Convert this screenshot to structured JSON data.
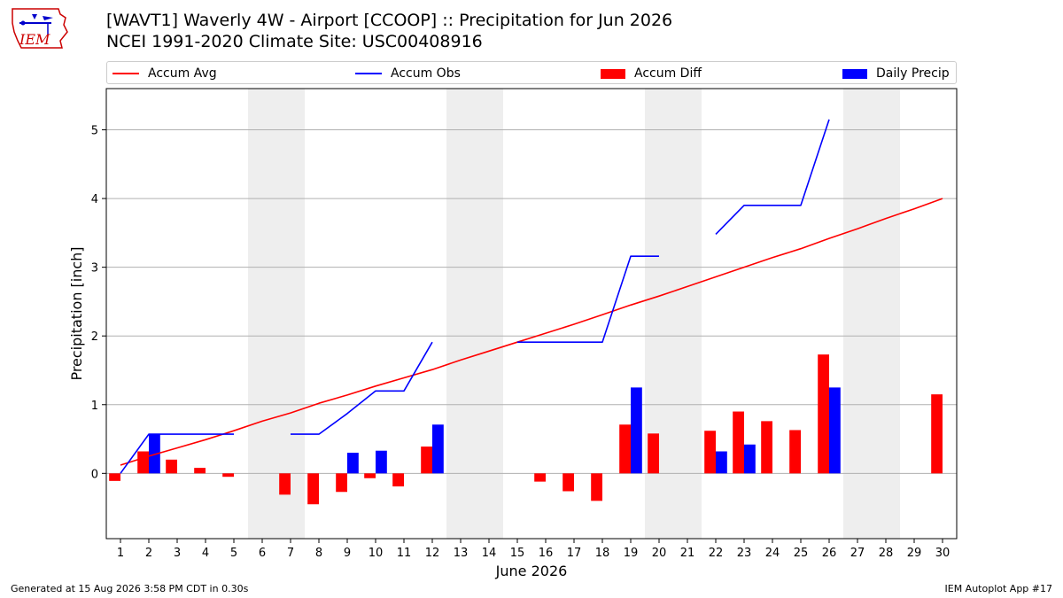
{
  "header": {
    "title_line1": "[WAVT1] Waverly 4W - Airport [CCOOP] :: Precipitation for Jun 2026",
    "title_line2": "NCEI 1991-2020 Climate Site: USC00408916",
    "logo_text": "IEM"
  },
  "footer": {
    "left": "Generated at 15 Aug 2026 3:58 PM CDT in 0.30s",
    "right": "IEM Autoplot App #17"
  },
  "colors": {
    "avg": "#ff0000",
    "obs": "#0000ff",
    "diff": "#ff0000",
    "daily": "#0000ff",
    "weekend": "#eeeeee",
    "grid": "#b0b0b0"
  },
  "chart_data": {
    "type": "bar",
    "xlabel": "June 2026",
    "ylabel": "Precipitation [inch]",
    "xlim": [
      0.5,
      30.5
    ],
    "ylim": [
      -0.95,
      5.6
    ],
    "yticks": [
      0,
      1,
      2,
      3,
      4,
      5
    ],
    "grid": "horizontal",
    "legend_position": "top",
    "weekend_days": [
      6,
      7,
      13,
      14,
      20,
      21,
      27,
      28
    ],
    "days": [
      1,
      2,
      3,
      4,
      5,
      6,
      7,
      8,
      9,
      10,
      11,
      12,
      13,
      14,
      15,
      16,
      17,
      18,
      19,
      20,
      21,
      22,
      23,
      24,
      25,
      26,
      27,
      28,
      29,
      30
    ],
    "series": [
      {
        "name": "Accum Avg",
        "kind": "line",
        "values": [
          0.12,
          0.25,
          0.37,
          0.49,
          0.62,
          0.76,
          0.88,
          1.02,
          1.14,
          1.27,
          1.39,
          1.51,
          1.65,
          1.78,
          1.91,
          2.04,
          2.17,
          2.31,
          2.45,
          2.58,
          2.72,
          2.86,
          3.0,
          3.14,
          3.27,
          3.42,
          3.56,
          3.71,
          3.85,
          4.0
        ]
      },
      {
        "name": "Accum Obs",
        "kind": "line",
        "values": [
          0.0,
          0.57,
          0.57,
          0.57,
          0.57,
          null,
          0.57,
          0.57,
          0.87,
          1.2,
          1.2,
          1.91,
          null,
          null,
          1.91,
          1.91,
          1.91,
          1.91,
          3.16,
          3.16,
          null,
          3.48,
          3.9,
          3.9,
          3.9,
          5.15,
          null,
          null,
          null,
          null
        ]
      },
      {
        "name": "Accum Diff",
        "kind": "bar",
        "values": [
          -0.11,
          0.32,
          0.2,
          0.08,
          -0.05,
          null,
          -0.31,
          -0.45,
          -0.27,
          -0.07,
          -0.19,
          0.39,
          null,
          null,
          0.0,
          -0.12,
          -0.26,
          -0.4,
          0.71,
          0.58,
          null,
          0.62,
          0.9,
          0.76,
          0.63,
          1.73,
          null,
          null,
          null,
          1.15
        ]
      },
      {
        "name": "Daily Precip",
        "kind": "bar",
        "values": [
          0,
          0.57,
          0,
          0,
          0,
          null,
          0,
          0,
          0.3,
          0.33,
          0,
          0.71,
          null,
          null,
          0,
          0,
          0,
          0,
          1.25,
          0,
          null,
          0.32,
          0.42,
          0,
          0,
          1.25,
          null,
          null,
          null,
          0
        ]
      }
    ]
  }
}
